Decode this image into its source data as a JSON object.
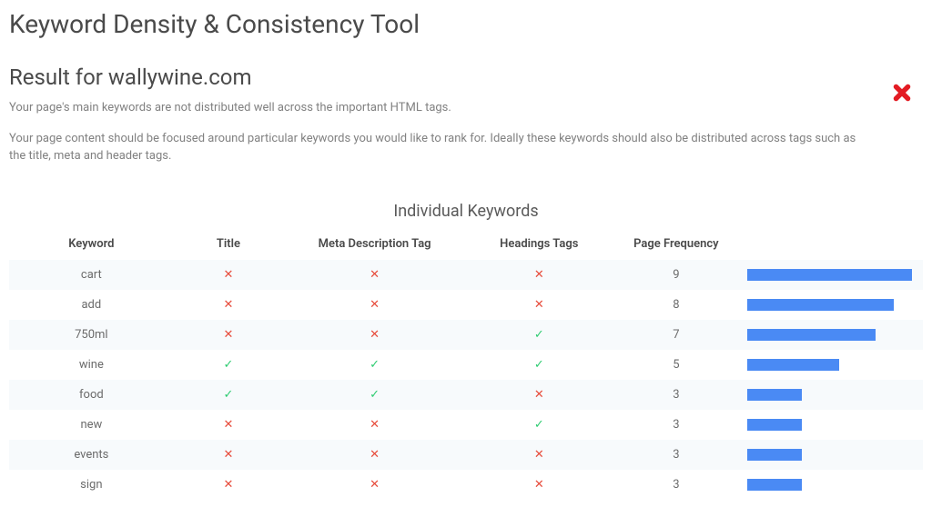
{
  "page_title": "Keyword Density & Consistency Tool",
  "result_heading": "Result for wallywine.com",
  "summary_line1": "Your page's main keywords are not distributed well across the important HTML tags.",
  "summary_line2": "Your page content should be focused around particular keywords you would like to rank for. Ideally these keywords should also be distributed across tags such as the title, meta and header tags.",
  "status": "fail",
  "status_color": "#e31b23",
  "table": {
    "title": "Individual Keywords",
    "columns": [
      "Keyword",
      "Title",
      "Meta Description Tag",
      "Headings Tags",
      "Page Frequency",
      ""
    ],
    "max_frequency": 9,
    "bar_color": "#4a8af4",
    "check_color": "#2ecc71",
    "cross_color": "#e74c3c",
    "row_alt_bg": "#f7fafc",
    "rows": [
      {
        "keyword": "cart",
        "title": false,
        "meta": false,
        "headings": false,
        "freq": 9
      },
      {
        "keyword": "add",
        "title": false,
        "meta": false,
        "headings": false,
        "freq": 8
      },
      {
        "keyword": "750ml",
        "title": false,
        "meta": false,
        "headings": true,
        "freq": 7
      },
      {
        "keyword": "wine",
        "title": true,
        "meta": true,
        "headings": true,
        "freq": 5
      },
      {
        "keyword": "food",
        "title": true,
        "meta": true,
        "headings": false,
        "freq": 3
      },
      {
        "keyword": "new",
        "title": false,
        "meta": false,
        "headings": true,
        "freq": 3
      },
      {
        "keyword": "events",
        "title": false,
        "meta": false,
        "headings": false,
        "freq": 3
      },
      {
        "keyword": "sign",
        "title": false,
        "meta": false,
        "headings": false,
        "freq": 3
      }
    ]
  }
}
